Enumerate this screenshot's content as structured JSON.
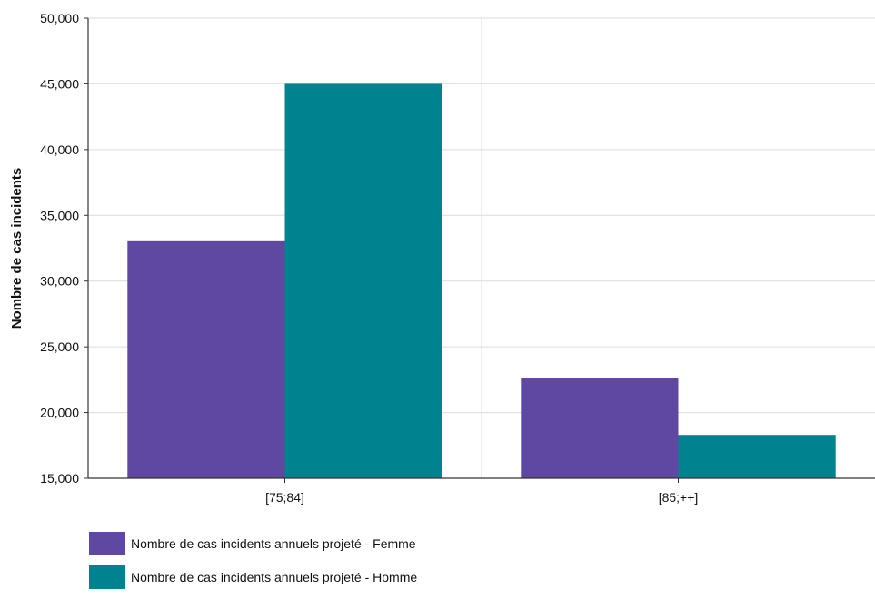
{
  "chart_data": {
    "type": "bar",
    "title": "",
    "xlabel": "",
    "ylabel": "Nombre de cas incidents",
    "categories": [
      "[75;84]",
      "[85;++]"
    ],
    "ylim": [
      15000,
      50000
    ],
    "yticks": [
      15000,
      20000,
      25000,
      30000,
      35000,
      40000,
      45000,
      50000
    ],
    "ytick_labels": [
      "15,000",
      "20,000",
      "25,000",
      "30,000",
      "35,000",
      "40,000",
      "45,000",
      "50,000"
    ],
    "series": [
      {
        "name": "Nombre de cas incidents annuels projeté - Femme",
        "color": "#5e48a1",
        "values": [
          33100,
          22600
        ]
      },
      {
        "name": "Nombre de cas incidents annuels projeté - Homme",
        "color": "#00838f",
        "values": [
          45000,
          18300
        ]
      }
    ],
    "grid": true,
    "legend_position": "bottom-left"
  }
}
